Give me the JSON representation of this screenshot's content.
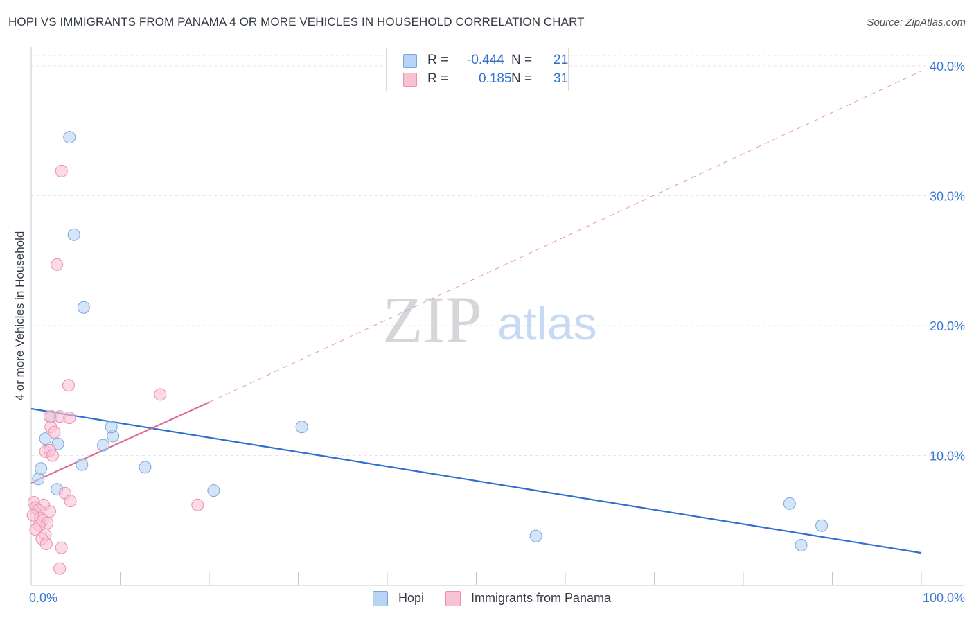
{
  "title": "HOPI VS IMMIGRANTS FROM PANAMA 4 OR MORE VEHICLES IN HOUSEHOLD CORRELATION CHART",
  "source": "Source: ZipAtlas.com",
  "watermark": {
    "zip": "ZIP",
    "atlas": "atlas"
  },
  "legend": {
    "rows": [
      {
        "r_label": "R =",
        "r_value": "-0.444",
        "n_label": "N =",
        "n_value": "21",
        "color": "#b8d3f3",
        "border": "#7aa6e0"
      },
      {
        "r_label": "R =",
        "r_value": "0.185",
        "n_label": "N =",
        "n_value": "31",
        "color": "#f8c2d3",
        "border": "#ea8fad"
      }
    ]
  },
  "bottom_legend": [
    {
      "label": "Hopi",
      "color": "#b8d3f3",
      "border": "#7aa6e0"
    },
    {
      "label": "Immigrants from Panama",
      "color": "#f8c2d3",
      "border": "#ea8fad"
    }
  ],
  "chart_data": {
    "type": "scatter",
    "title": "HOPI VS IMMIGRANTS FROM PANAMA 4 OR MORE VEHICLES IN HOUSEHOLD CORRELATION CHART",
    "xlabel": "",
    "ylabel": "4 or more Vehicles in Household",
    "xlim": [
      0,
      100
    ],
    "ylim": [
      0,
      40
    ],
    "x_ticks": [
      "0.0%",
      "100.0%"
    ],
    "y_ticks": [
      "10.0%",
      "20.0%",
      "30.0%",
      "40.0%"
    ],
    "y_tick_values": [
      10,
      20,
      30,
      40
    ],
    "grid": true,
    "series": [
      {
        "name": "Hopi",
        "color": "#7aa6e0",
        "fill": "#b8d3f3",
        "line_color": "#2e6fcf",
        "trend": {
          "x": [
            0,
            100
          ],
          "y": [
            13.6,
            2.5
          ],
          "dashed_to": null
        },
        "points": [
          [
            4.3,
            34.5
          ],
          [
            4.8,
            27.0
          ],
          [
            5.9,
            21.4
          ],
          [
            2.3,
            13.0
          ],
          [
            1.6,
            11.3
          ],
          [
            3.0,
            10.9
          ],
          [
            9.2,
            11.5
          ],
          [
            9.0,
            12.2
          ],
          [
            8.1,
            10.8
          ],
          [
            5.7,
            9.3
          ],
          [
            1.1,
            9.0
          ],
          [
            0.8,
            8.2
          ],
          [
            2.9,
            7.4
          ],
          [
            12.8,
            9.1
          ],
          [
            20.5,
            7.3
          ],
          [
            30.4,
            12.2
          ],
          [
            0.5,
            6.0
          ],
          [
            56.7,
            3.8
          ],
          [
            85.2,
            6.3
          ],
          [
            88.8,
            4.6
          ],
          [
            86.5,
            3.1
          ]
        ]
      },
      {
        "name": "Immigrants from Panama",
        "color": "#ea8fad",
        "fill": "#f8c2d3",
        "line_color": "#e06b95",
        "trend": {
          "x": [
            0,
            20
          ],
          "y": [
            7.9,
            14.1
          ],
          "dashed_to": {
            "x": 100,
            "y": 39.6
          }
        },
        "points": [
          [
            3.4,
            31.9
          ],
          [
            2.9,
            24.7
          ],
          [
            4.2,
            15.4
          ],
          [
            14.5,
            14.7
          ],
          [
            3.2,
            13.0
          ],
          [
            4.3,
            12.9
          ],
          [
            2.1,
            13.0
          ],
          [
            2.2,
            12.2
          ],
          [
            2.6,
            11.8
          ],
          [
            1.6,
            10.3
          ],
          [
            2.1,
            10.4
          ],
          [
            2.4,
            10.0
          ],
          [
            3.8,
            7.1
          ],
          [
            4.4,
            6.5
          ],
          [
            18.7,
            6.2
          ],
          [
            0.3,
            6.4
          ],
          [
            0.5,
            6.0
          ],
          [
            1.4,
            6.2
          ],
          [
            0.8,
            5.8
          ],
          [
            2.1,
            5.7
          ],
          [
            1.0,
            5.2
          ],
          [
            1.3,
            5.0
          ],
          [
            1.8,
            4.8
          ],
          [
            0.9,
            4.6
          ],
          [
            0.5,
            4.3
          ],
          [
            1.6,
            3.9
          ],
          [
            1.2,
            3.6
          ],
          [
            1.7,
            3.2
          ],
          [
            3.4,
            2.9
          ],
          [
            3.2,
            1.3
          ],
          [
            0.2,
            5.4
          ]
        ]
      }
    ]
  }
}
